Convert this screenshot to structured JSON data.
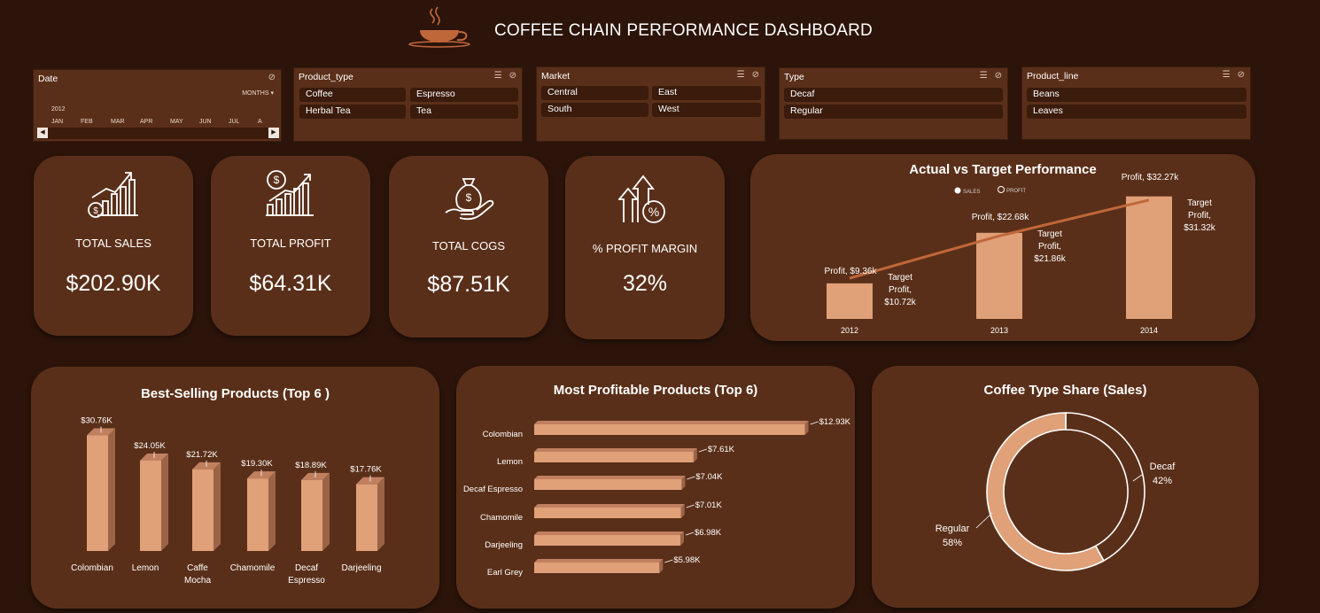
{
  "header": {
    "title": "COFFEE CHAIN PERFORMANCE DASHBOARD"
  },
  "slicers": {
    "date": {
      "title": "Date",
      "period": "MONTHS",
      "year": "2012",
      "months": [
        "JAN",
        "FEB",
        "MAR",
        "APR",
        "MAY",
        "JUN",
        "JUL",
        "A"
      ]
    },
    "product_type": {
      "title": "Product_type",
      "items": [
        "Coffee",
        "Espresso",
        "Herbal Tea",
        "Tea"
      ]
    },
    "market": {
      "title": "Market",
      "items": [
        "Central",
        "East",
        "South",
        "West"
      ]
    },
    "type": {
      "title": "Type",
      "items": [
        "Decaf",
        "Regular"
      ]
    },
    "product_line": {
      "title": "Product_line",
      "items": [
        "Beans",
        "Leaves"
      ]
    }
  },
  "kpis": {
    "sales": {
      "label": "TOTAL SALES",
      "value": "$202.90K",
      "icon": "sales-chart-icon"
    },
    "profit": {
      "label": "TOTAL PROFIT",
      "value": "$64.31K",
      "icon": "profit-growth-icon"
    },
    "cogs": {
      "label": "TOTAL COGS",
      "value": "$87.51K",
      "icon": "money-bag-hand-icon"
    },
    "margin": {
      "label": "% PROFIT MARGIN",
      "value": "32%",
      "icon": "percent-arrows-icon"
    }
  },
  "colors": {
    "background": "#2c140a",
    "card": "#5a2f19",
    "bar": "#e0a078",
    "bar_side": "#9c6446",
    "line": "#c0673a",
    "slicer_item": "#3a1b0c"
  },
  "chart_data": [
    {
      "id": "actual_vs_target",
      "type": "bar",
      "title": "Actual vs Target Performance",
      "legend": [
        "SALES",
        "PROFIT"
      ],
      "legend_position": "top",
      "categories": [
        "2012",
        "2013",
        "2014"
      ],
      "series": [
        {
          "name": "Profit",
          "values": [
            9.36,
            22.68,
            32.27
          ],
          "labels": [
            "Profit, $9.36k",
            "Profit, $22.68k",
            "Profit, $32.27k"
          ]
        },
        {
          "name": "Target Profit",
          "values": [
            10.72,
            21.86,
            31.32
          ],
          "labels": [
            "Target Profit, $10.72k",
            "Target Profit, $21.86k",
            "Target Profit, $31.32k"
          ]
        }
      ],
      "ylim": [
        0,
        35
      ]
    },
    {
      "id": "best_selling",
      "type": "bar",
      "title": "Best-Selling Products (Top 6 )",
      "categories": [
        "Colombian",
        "Lemon",
        "Caffe Mocha",
        "Chamomile",
        "Decaf Espresso",
        "Darjeeling"
      ],
      "values": [
        30.76,
        24.05,
        21.72,
        19.3,
        18.89,
        17.76
      ],
      "value_labels": [
        "$30.76K",
        "$24.05K",
        "$21.72K",
        "$19.30K",
        "$18.89K",
        "$17.76K"
      ],
      "ylim": [
        0,
        33
      ]
    },
    {
      "id": "most_profitable",
      "type": "bar",
      "orientation": "horizontal",
      "title": "Most Profitable Products (Top 6)",
      "categories": [
        "Colombian",
        "Lemon",
        "Decaf Espresso",
        "Chamomile",
        "Darjeeling",
        "Earl Grey"
      ],
      "values": [
        12.93,
        7.61,
        7.04,
        7.01,
        6.98,
        5.98
      ],
      "value_labels": [
        "$12.93K",
        "$7.61K",
        "$7.04K",
        "$7.01K",
        "$6.98K",
        "$5.98K"
      ],
      "xlim": [
        0,
        13.2
      ]
    },
    {
      "id": "coffee_type_share",
      "type": "pie",
      "title": "Coffee Type Share (Sales)",
      "categories": [
        "Decaf",
        "Regular"
      ],
      "values": [
        42,
        58
      ],
      "value_labels": [
        "42%",
        "58%"
      ],
      "colors": [
        "#5a2f19",
        "#e0a078"
      ]
    }
  ]
}
